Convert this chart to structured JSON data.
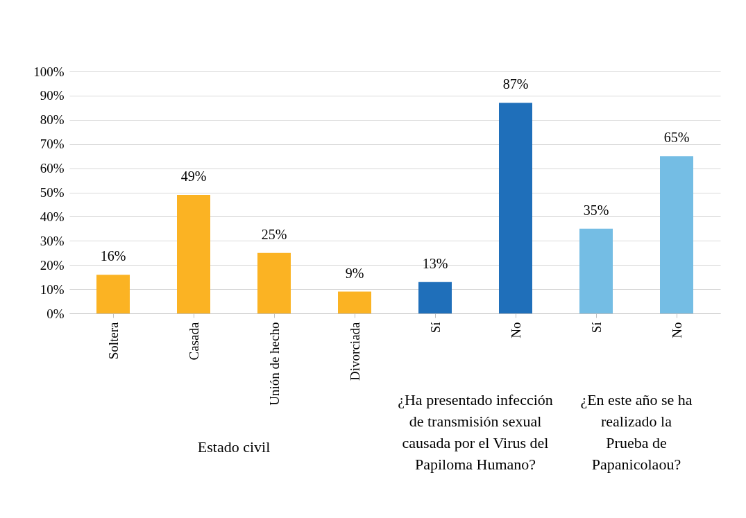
{
  "chart_data": {
    "type": "bar",
    "categories": [
      "Soltera",
      "Casada",
      "Unión de hecho",
      "Divorciada",
      "Sí",
      "No",
      "Sí",
      "No"
    ],
    "values": [
      16,
      49,
      25,
      9,
      13,
      87,
      35,
      65
    ],
    "colors": [
      "#fbb323",
      "#fbb323",
      "#fbb323",
      "#fbb323",
      "#1f6fba",
      "#1f6fba",
      "#74bde4",
      "#74bde4"
    ],
    "value_labels": [
      "16%",
      "49%",
      "25%",
      "9%",
      "13%",
      "87%",
      "35%",
      "65%"
    ],
    "ylim": [
      0,
      100
    ],
    "yticks": [
      {
        "value": 0,
        "label": "0%"
      },
      {
        "value": 10,
        "label": "10%"
      },
      {
        "value": 20,
        "label": "20%"
      },
      {
        "value": 30,
        "label": "30%"
      },
      {
        "value": 40,
        "label": "40%"
      },
      {
        "value": 50,
        "label": "50%"
      },
      {
        "value": 60,
        "label": "60%"
      },
      {
        "value": 70,
        "label": "70%"
      },
      {
        "value": 80,
        "label": "80%"
      },
      {
        "value": 90,
        "label": "90%"
      },
      {
        "value": 100,
        "label": "100%"
      }
    ],
    "grid": "y",
    "annotations": [
      "Estado civil",
      "¿Ha presentado infección de transmisión sexual causada por el Virus del Papiloma Humano?",
      "¿En este año se ha realizado la Prueba de Papanicolaou?"
    ]
  }
}
